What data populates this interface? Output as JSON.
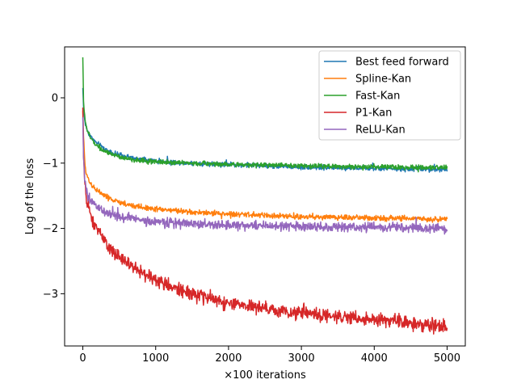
{
  "chart_data": {
    "type": "line",
    "title": "",
    "xlabel": "×100 iterations",
    "ylabel": "Log of the loss",
    "xlim": [
      -250,
      5250
    ],
    "ylim": [
      -3.8,
      0.78
    ],
    "xticks": [
      0,
      1000,
      2000,
      3000,
      4000,
      5000
    ],
    "xtick_labels": [
      "0",
      "1000",
      "2000",
      "3000",
      "4000",
      "5000"
    ],
    "yticks": [
      0,
      -1,
      -2,
      -3
    ],
    "ytick_labels": [
      "0",
      "−1",
      "−2",
      "−3"
    ],
    "grid": false,
    "legend_position": "top-right",
    "series": [
      {
        "name": "Best feed forward",
        "color": "#1f77b4",
        "noise": 0.018,
        "x": [
          0,
          10,
          30,
          60,
          100,
          150,
          200,
          300,
          400,
          500,
          700,
          1000,
          1500,
          2000,
          2500,
          3000,
          3500,
          4000,
          4500,
          5000
        ],
        "y": [
          0.15,
          -0.15,
          -0.38,
          -0.5,
          -0.58,
          -0.65,
          -0.7,
          -0.78,
          -0.84,
          -0.88,
          -0.93,
          -0.97,
          -1.0,
          -1.02,
          -1.04,
          -1.06,
          -1.07,
          -1.08,
          -1.09,
          -1.1
        ]
      },
      {
        "name": "Spline-Kan",
        "color": "#ff7f0e",
        "noise": 0.02,
        "x": [
          0,
          10,
          30,
          60,
          100,
          150,
          200,
          300,
          400,
          500,
          700,
          1000,
          1500,
          2000,
          2500,
          3000,
          3500,
          4000,
          4500,
          5000
        ],
        "y": [
          -0.2,
          -0.6,
          -1.05,
          -1.2,
          -1.3,
          -1.37,
          -1.42,
          -1.5,
          -1.56,
          -1.6,
          -1.66,
          -1.7,
          -1.75,
          -1.78,
          -1.8,
          -1.82,
          -1.83,
          -1.84,
          -1.85,
          -1.86
        ]
      },
      {
        "name": "Fast-Kan",
        "color": "#2ca02c",
        "noise": 0.018,
        "x": [
          0,
          10,
          30,
          60,
          100,
          150,
          200,
          300,
          400,
          500,
          700,
          1000,
          1500,
          2000,
          2500,
          3000,
          3500,
          4000,
          4500,
          5000
        ],
        "y": [
          0.62,
          -0.05,
          -0.35,
          -0.5,
          -0.6,
          -0.68,
          -0.73,
          -0.82,
          -0.88,
          -0.91,
          -0.95,
          -0.98,
          -1.0,
          -1.02,
          -1.03,
          -1.04,
          -1.05,
          -1.06,
          -1.07,
          -1.07
        ]
      },
      {
        "name": "P1-Kan",
        "color": "#d62728",
        "noise": 0.05,
        "x": [
          0,
          10,
          30,
          60,
          100,
          150,
          200,
          300,
          400,
          500,
          700,
          1000,
          1500,
          2000,
          2500,
          3000,
          3500,
          4000,
          4500,
          5000
        ],
        "y": [
          -0.15,
          -0.9,
          -1.4,
          -1.6,
          -1.8,
          -1.92,
          -2.02,
          -2.2,
          -2.35,
          -2.45,
          -2.6,
          -2.8,
          -3.0,
          -3.15,
          -3.23,
          -3.3,
          -3.35,
          -3.4,
          -3.45,
          -3.5
        ]
      },
      {
        "name": "ReLU-Kan",
        "color": "#9467bd",
        "noise": 0.035,
        "x": [
          0,
          10,
          30,
          60,
          100,
          150,
          200,
          300,
          400,
          500,
          700,
          1000,
          1500,
          2000,
          2500,
          3000,
          3500,
          4000,
          4500,
          5000
        ],
        "y": [
          -0.3,
          -0.9,
          -1.3,
          -1.5,
          -1.58,
          -1.63,
          -1.68,
          -1.74,
          -1.78,
          -1.82,
          -1.86,
          -1.9,
          -1.93,
          -1.95,
          -1.96,
          -1.97,
          -1.98,
          -1.98,
          -1.99,
          -2.0
        ]
      }
    ]
  }
}
